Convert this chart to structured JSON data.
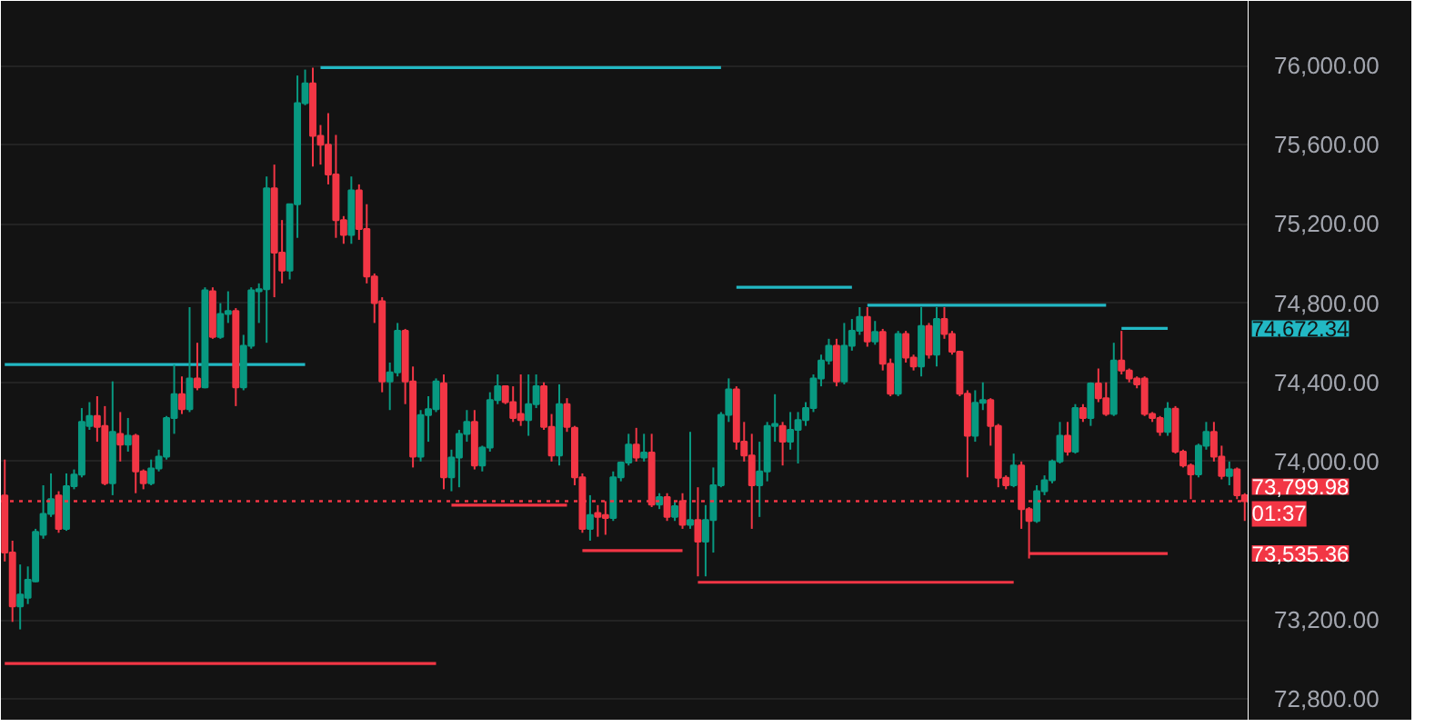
{
  "chart_data": {
    "type": "candlestick",
    "categories": [
      null,
      null,
      null,
      null,
      null,
      null,
      null,
      null,
      null,
      null,
      null,
      null,
      null,
      null,
      null,
      null,
      null,
      null,
      null,
      null,
      null,
      null,
      null,
      null,
      null,
      null,
      null,
      null,
      null,
      null,
      null,
      null,
      null,
      null,
      null,
      null,
      null,
      null,
      null,
      null,
      null,
      null,
      null,
      null,
      null,
      null,
      null,
      null,
      null,
      null,
      null,
      null,
      null,
      null,
      null,
      null,
      null,
      null,
      null,
      null,
      null,
      null,
      null,
      null,
      null,
      null,
      null,
      null,
      null,
      null,
      null,
      null,
      null,
      null,
      null,
      null,
      null,
      null,
      null,
      null,
      null,
      null,
      null,
      null,
      null,
      null,
      null,
      null,
      null,
      null,
      null,
      null,
      null,
      null,
      null,
      null,
      null,
      null,
      null,
      null,
      null,
      null,
      null,
      null,
      null,
      null,
      null,
      null,
      null,
      null,
      null,
      null,
      null,
      null,
      null,
      null,
      null,
      null,
      null,
      null,
      null,
      null,
      null,
      null,
      null,
      null,
      null,
      null,
      null,
      null,
      null,
      null,
      null,
      null,
      null,
      null,
      null,
      null,
      null,
      null,
      null,
      null,
      null,
      null,
      null,
      null,
      null,
      null,
      null,
      null,
      null,
      null,
      null,
      null,
      null,
      null,
      null,
      null,
      null,
      null,
      null,
      null
    ],
    "ohlc": [
      [
        73828,
        74010,
        73495,
        73540
      ],
      [
        73540,
        73600,
        73190,
        73268
      ],
      [
        73268,
        73480,
        73152,
        73328
      ],
      [
        73312,
        73470,
        73280,
        73403
      ],
      [
        73395,
        73660,
        73390,
        73645
      ],
      [
        73630,
        73880,
        73610,
        73735
      ],
      [
        73735,
        73940,
        73720,
        73810
      ],
      [
        73828,
        73850,
        73640,
        73660
      ],
      [
        73660,
        73940,
        73650,
        73875
      ],
      [
        73875,
        73960,
        73860,
        73934
      ],
      [
        73934,
        74270,
        73920,
        74200
      ],
      [
        74180,
        74300,
        74160,
        74230
      ],
      [
        74230,
        74330,
        74100,
        74175
      ],
      [
        74180,
        74280,
        73880,
        73890
      ],
      [
        73890,
        74405,
        73830,
        74150
      ],
      [
        74140,
        74250,
        74000,
        74085
      ],
      [
        74085,
        74220,
        74050,
        74130
      ],
      [
        74130,
        74140,
        73840,
        73950
      ],
      [
        73950,
        73960,
        73860,
        73890
      ],
      [
        73890,
        74010,
        73880,
        73965
      ],
      [
        73965,
        74060,
        73950,
        74025
      ],
      [
        74025,
        74230,
        74010,
        74220
      ],
      [
        74220,
        74490,
        74140,
        74340
      ],
      [
        74340,
        74430,
        74240,
        74265
      ],
      [
        74265,
        74780,
        74250,
        74420
      ],
      [
        74420,
        74600,
        74360,
        74375
      ],
      [
        74375,
        74880,
        74370,
        74865
      ],
      [
        74860,
        74880,
        74620,
        74630
      ],
      [
        74630,
        74800,
        74620,
        74745
      ],
      [
        74745,
        74860,
        74700,
        74760
      ],
      [
        74760,
        74775,
        74280,
        74375
      ],
      [
        74375,
        74640,
        74360,
        74585
      ],
      [
        74585,
        74880,
        74570,
        74865
      ],
      [
        74860,
        74900,
        74700,
        74870
      ],
      [
        74870,
        75440,
        74600,
        75380
      ],
      [
        75380,
        75500,
        74830,
        75055
      ],
      [
        75055,
        75220,
        74900,
        74965
      ],
      [
        74965,
        75300,
        74920,
        75300
      ],
      [
        75300,
        75950,
        75130,
        75810
      ],
      [
        75810,
        75980,
        75800,
        75910
      ],
      [
        75910,
        75990,
        75490,
        75645
      ],
      [
        75645,
        75700,
        75500,
        75600
      ],
      [
        75600,
        75760,
        75400,
        75450
      ],
      [
        75450,
        75650,
        75130,
        75220
      ],
      [
        75220,
        75240,
        75100,
        75145
      ],
      [
        75145,
        75440,
        75100,
        75370
      ],
      [
        75370,
        75400,
        75120,
        75175
      ],
      [
        75175,
        75300,
        74900,
        74935
      ],
      [
        74935,
        74950,
        74700,
        74800
      ],
      [
        74810,
        74830,
        74350,
        74405
      ],
      [
        74405,
        74500,
        74260,
        74450
      ],
      [
        74450,
        74700,
        74430,
        74660
      ],
      [
        74660,
        74670,
        74290,
        74405
      ],
      [
        74405,
        74480,
        73970,
        74025
      ],
      [
        74025,
        74260,
        74000,
        74235
      ],
      [
        74235,
        74330,
        74100,
        74265
      ],
      [
        74265,
        74420,
        74250,
        74405
      ],
      [
        74395,
        74440,
        73860,
        73920
      ],
      [
        73920,
        74060,
        73850,
        74020
      ],
      [
        74020,
        74160,
        73870,
        74140
      ],
      [
        74140,
        74260,
        74100,
        74200
      ],
      [
        74200,
        74260,
        73960,
        73980
      ],
      [
        73980,
        74080,
        73950,
        74070
      ],
      [
        74070,
        74350,
        74050,
        74310
      ],
      [
        74310,
        74440,
        74290,
        74380
      ],
      [
        74380,
        74380,
        74290,
        74300
      ],
      [
        74300,
        74380,
        74200,
        74220
      ],
      [
        74240,
        74440,
        74180,
        74210
      ],
      [
        74210,
        74440,
        74130,
        74290
      ],
      [
        74290,
        74440,
        74270,
        74380
      ],
      [
        74380,
        74400,
        74160,
        74175
      ],
      [
        74175,
        74240,
        74000,
        74030
      ],
      [
        74030,
        74390,
        73980,
        74290
      ],
      [
        74290,
        74320,
        74150,
        74175
      ],
      [
        74170,
        74180,
        73880,
        73920
      ],
      [
        73920,
        73940,
        73640,
        73660
      ],
      [
        73660,
        73830,
        73600,
        73730
      ],
      [
        73740,
        73780,
        73620,
        73720
      ],
      [
        73730,
        73800,
        73630,
        73715
      ],
      [
        73715,
        73950,
        73700,
        73920
      ],
      [
        73920,
        74000,
        73900,
        73995
      ],
      [
        73995,
        74140,
        73980,
        74085
      ],
      [
        74085,
        74170,
        74000,
        74020
      ],
      [
        74020,
        74140,
        74000,
        74045
      ],
      [
        74045,
        74140,
        73770,
        73782
      ],
      [
        73782,
        73840,
        73760,
        73820
      ],
      [
        73820,
        73840,
        73700,
        73720
      ],
      [
        73720,
        73800,
        73700,
        73775
      ],
      [
        73800,
        73840,
        73660,
        73680
      ],
      [
        73680,
        74150,
        73660,
        73705
      ],
      [
        73705,
        73870,
        73420,
        73595
      ],
      [
        73595,
        73780,
        73420,
        73705
      ],
      [
        73705,
        73970,
        73540,
        73880
      ],
      [
        73880,
        74250,
        73870,
        74236
      ],
      [
        74236,
        74420,
        74200,
        74364
      ],
      [
        74364,
        74380,
        74060,
        74100
      ],
      [
        74100,
        74200,
        74000,
        74030
      ],
      [
        74030,
        74140,
        73660,
        73880
      ],
      [
        73880,
        74100,
        73720,
        73950
      ],
      [
        73950,
        74200,
        73900,
        74180
      ],
      [
        74180,
        74340,
        74100,
        74190
      ],
      [
        74180,
        74200,
        73980,
        74100
      ],
      [
        74100,
        74250,
        74060,
        74160
      ],
      [
        74160,
        74250,
        73990,
        74210
      ],
      [
        74210,
        74300,
        74180,
        74270
      ],
      [
        74270,
        74440,
        74250,
        74420
      ],
      [
        74420,
        74540,
        74380,
        74510
      ],
      [
        74510,
        74620,
        74490,
        74585
      ],
      [
        74585,
        74620,
        74380,
        74405
      ],
      [
        74405,
        74700,
        74390,
        74585
      ],
      [
        74585,
        74720,
        74560,
        74660
      ],
      [
        74660,
        74780,
        74640,
        74730
      ],
      [
        74730,
        74780,
        74580,
        74606
      ],
      [
        74606,
        74710,
        74590,
        74655
      ],
      [
        74655,
        74670,
        74460,
        74494
      ],
      [
        74494,
        74520,
        74330,
        74343
      ],
      [
        74343,
        74660,
        74330,
        74645
      ],
      [
        74645,
        74660,
        74500,
        74525
      ],
      [
        74525,
        74540,
        74460,
        74480
      ],
      [
        74480,
        74780,
        74430,
        74685
      ],
      [
        74685,
        74700,
        74520,
        74540
      ],
      [
        74540,
        74780,
        74480,
        74720
      ],
      [
        74720,
        74780,
        74620,
        74645
      ],
      [
        74645,
        74660,
        74540,
        74555
      ],
      [
        74555,
        74560,
        74330,
        74343
      ],
      [
        74343,
        74360,
        73920,
        74130
      ],
      [
        74130,
        74360,
        74100,
        74297
      ],
      [
        74297,
        74400,
        74260,
        74310
      ],
      [
        74310,
        74320,
        74080,
        74180
      ],
      [
        74180,
        74190,
        73870,
        73918
      ],
      [
        73918,
        73930,
        73860,
        73880
      ],
      [
        73880,
        74040,
        73870,
        73980
      ],
      [
        73980,
        74000,
        73660,
        73760
      ],
      [
        73760,
        73770,
        73510,
        73700
      ],
      [
        73700,
        73880,
        73690,
        73850
      ],
      [
        73850,
        73930,
        73830,
        73905
      ],
      [
        73905,
        74010,
        73890,
        74000
      ],
      [
        74000,
        74200,
        73990,
        74130
      ],
      [
        74130,
        74200,
        74030,
        74050
      ],
      [
        74050,
        74290,
        74040,
        74270
      ],
      [
        74270,
        74290,
        74200,
        74220
      ],
      [
        74220,
        74400,
        74180,
        74394
      ],
      [
        74394,
        74470,
        74300,
        74320
      ],
      [
        74320,
        74400,
        74230,
        74240
      ],
      [
        74240,
        74600,
        74230,
        74510
      ],
      [
        74510,
        74660,
        74440,
        74460
      ],
      [
        74460,
        74470,
        74400,
        74420
      ],
      [
        74420,
        74430,
        74370,
        74390
      ],
      [
        74420,
        74430,
        74230,
        74240
      ],
      [
        74240,
        74250,
        74200,
        74220
      ],
      [
        74220,
        74230,
        74130,
        74150
      ],
      [
        74150,
        74300,
        74130,
        74267
      ],
      [
        74267,
        74280,
        74040,
        74050
      ],
      [
        74050,
        74060,
        73970,
        73980
      ],
      [
        73980,
        73990,
        73810,
        73935
      ],
      [
        73935,
        74090,
        73920,
        74080
      ],
      [
        74080,
        74200,
        74060,
        74150
      ],
      [
        74150,
        74200,
        74000,
        74025
      ],
      [
        74025,
        74080,
        73910,
        73927
      ],
      [
        73927,
        74000,
        73880,
        73960
      ],
      [
        73960,
        73970,
        73810,
        73830
      ],
      [
        73830,
        73840,
        73700,
        73799.98
      ]
    ],
    "colors": [
      "#f23645",
      "#f23645",
      "#089981",
      "#089981",
      "#089981",
      "#089981",
      "#089981",
      "#f23645",
      "#089981",
      "#089981",
      "#089981",
      "#089981",
      "#f23645",
      "#f23645",
      "#089981",
      "#f23645",
      "#089981",
      "#f23645",
      "#f23645",
      "#089981",
      "#089981",
      "#089981",
      "#089981",
      "#f23645",
      "#089981",
      "#f23645",
      "#089981",
      "#f23645",
      "#089981",
      "#089981",
      "#f23645",
      "#089981",
      "#089981",
      "#089981",
      "#089981",
      "#f23645",
      "#f23645",
      "#089981",
      "#089981",
      "#089981",
      "#f23645",
      "#f23645",
      "#f23645",
      "#f23645",
      "#f23645",
      "#089981",
      "#f23645",
      "#f23645",
      "#f23645",
      "#f23645",
      "#089981",
      "#089981",
      "#f23645",
      "#f23645",
      "#089981",
      "#089981",
      "#089981",
      "#f23645",
      "#089981",
      "#089981",
      "#089981",
      "#f23645",
      "#089981",
      "#089981",
      "#089981",
      "#f23645",
      "#f23645",
      "#f23645",
      "#089981",
      "#089981",
      "#f23645",
      "#f23645",
      "#089981",
      "#f23645",
      "#f23645",
      "#f23645",
      "#089981",
      "#f23645",
      "#f23645",
      "#089981",
      "#089981",
      "#089981",
      "#f23645",
      "#089981",
      "#f23645",
      "#089981",
      "#f23645",
      "#089981",
      "#f23645",
      "#089981",
      "#f23645",
      "#089981",
      "#089981",
      "#089981",
      "#089981",
      "#f23645",
      "#f23645",
      "#f23645",
      "#089981",
      "#089981",
      "#089981",
      "#f23645",
      "#089981",
      "#089981",
      "#089981",
      "#089981",
      "#089981",
      "#089981",
      "#f23645",
      "#089981",
      "#089981",
      "#089981",
      "#f23645",
      "#089981",
      "#f23645",
      "#f23645",
      "#089981",
      "#f23645",
      "#f23645",
      "#089981",
      "#f23645",
      "#089981",
      "#f23645",
      "#f23645",
      "#f23645",
      "#f23645",
      "#089981",
      "#089981",
      "#f23645",
      "#f23645",
      "#f23645",
      "#089981",
      "#f23645",
      "#f23645",
      "#089981",
      "#089981",
      "#089981",
      "#089981",
      "#f23645",
      "#089981",
      "#f23645",
      "#089981",
      "#f23645",
      "#f23645",
      "#089981",
      "#f23645",
      "#f23645",
      "#f23645",
      "#f23645",
      "#f23645",
      "#f23645",
      "#089981",
      "#f23645",
      "#f23645",
      "#f23645",
      "#089981",
      "#089981",
      "#f23645",
      "#f23645",
      "#089981",
      "#f23645",
      "#f23645"
    ],
    "series": [
      {
        "type": "line",
        "name": "74,672.34",
        "color": "#22b8c4",
        "values": [
          74490,
          74490,
          74490,
          74490,
          74490,
          74490,
          74490,
          74490,
          74490,
          74490,
          74490,
          74490,
          74490,
          74490,
          74490,
          74490,
          74490,
          74490,
          74490,
          74490,
          74490,
          74490,
          74490,
          74490,
          74490,
          74490,
          74490,
          74490,
          74490,
          74490,
          74490,
          74490,
          74490,
          74490,
          74490,
          74490,
          74490,
          74490,
          74490,
          74490,
          null,
          75990,
          75990,
          75990,
          75990,
          75990,
          75990,
          75990,
          75990,
          75990,
          75990,
          75990,
          75990,
          75990,
          75990,
          75990,
          75990,
          75990,
          75990,
          75990,
          75990,
          75990,
          75990,
          75990,
          75990,
          75990,
          75990,
          75990,
          75990,
          75990,
          75990,
          75990,
          75990,
          75990,
          75990,
          75990,
          75990,
          75990,
          75990,
          75990,
          75990,
          75990,
          75990,
          75990,
          75990,
          75990,
          75990,
          75990,
          75990,
          75990,
          75990,
          75990,
          75990,
          75990,
          null,
          74880,
          74880,
          74880,
          74880,
          74880,
          74880,
          74880,
          74880,
          74880,
          74880,
          74880,
          74880,
          74880,
          74880,
          74880,
          74880,
          null,
          74790,
          74790,
          74790,
          74790,
          74790,
          74790,
          74790,
          74790,
          74790,
          74790,
          74790,
          74790,
          74790,
          74790,
          74790,
          74790,
          74790,
          74790,
          74790,
          74790,
          74790,
          74790,
          74790,
          74790,
          74790,
          74790,
          74790,
          74790,
          74790,
          74790,
          74790,
          74790,
          null,
          74672.34,
          74672.34,
          74672.34,
          74672.34,
          74672.34,
          74672.34,
          74672.34,
          null,
          null,
          null,
          null,
          null,
          null,
          null,
          null,
          null,
          null
        ]
      },
      {
        "type": "line",
        "name": "73,535.36",
        "color": "#f23645",
        "values": [
          72980,
          72980,
          72980,
          72980,
          72980,
          72980,
          72980,
          72980,
          72980,
          72980,
          72980,
          72980,
          72980,
          72980,
          72980,
          72980,
          72980,
          72980,
          72980,
          72980,
          72980,
          72980,
          72980,
          72980,
          72980,
          72980,
          72980,
          72980,
          72980,
          72980,
          72980,
          72980,
          72980,
          72980,
          72980,
          72980,
          72980,
          72980,
          72980,
          72980,
          72980,
          72980,
          72980,
          72980,
          72980,
          72980,
          72980,
          72980,
          72980,
          72980,
          72980,
          72980,
          72980,
          72980,
          72980,
          72980,
          72980,
          null,
          73780,
          73780,
          73780,
          73780,
          73780,
          73780,
          73780,
          73780,
          73780,
          73780,
          73780,
          73780,
          73780,
          73780,
          73780,
          73780,
          null,
          73550,
          73550,
          73550,
          73550,
          73550,
          73550,
          73550,
          73550,
          73550,
          73550,
          73550,
          73550,
          73550,
          73550,
          null,
          73390,
          73390,
          73390,
          73390,
          73390,
          73390,
          73390,
          73390,
          73390,
          73390,
          73390,
          73390,
          73390,
          73390,
          73390,
          73390,
          73390,
          73390,
          73390,
          73390,
          73390,
          73390,
          73390,
          73390,
          73390,
          73390,
          73390,
          73390,
          73390,
          73390,
          73390,
          73390,
          73390,
          73390,
          73390,
          73390,
          73390,
          73390,
          73390,
          73390,
          73390,
          73390,
          null,
          73535.36,
          73535.36,
          73535.36,
          73535.36,
          73535.36,
          73535.36,
          73535.36,
          73535.36,
          73535.36,
          73535.36,
          73535.36,
          73535.36,
          73535.36,
          73535.36,
          73535.36,
          73535.36,
          73535.36,
          73535.36,
          73535.36,
          null,
          null,
          null,
          null,
          null,
          null,
          null,
          null,
          null,
          null
        ]
      }
    ],
    "ref_lines": [
      {
        "axis": "y",
        "value": 73799.98,
        "label": "73,799.98",
        "color": "#f23645",
        "line_style": "dotted"
      }
    ],
    "annotations": [
      "01:37"
    ],
    "ylim": [
      72691,
      76327
    ],
    "yticks": [
      {
        "value": 72800,
        "label": "72,800.00"
      },
      {
        "value": 73200,
        "label": "73,200.00"
      },
      {
        "value": 74000,
        "label": "74,000.00"
      },
      {
        "value": 74400,
        "label": "74,400.00"
      },
      {
        "value": 74800,
        "label": "74,800.00"
      },
      {
        "value": 75200,
        "label": "75,200.00"
      },
      {
        "value": 75600,
        "label": "75,600.00"
      },
      {
        "value": 76000,
        "label": "76,000.00"
      }
    ],
    "grid": "y",
    "tick_labels": "y"
  }
}
